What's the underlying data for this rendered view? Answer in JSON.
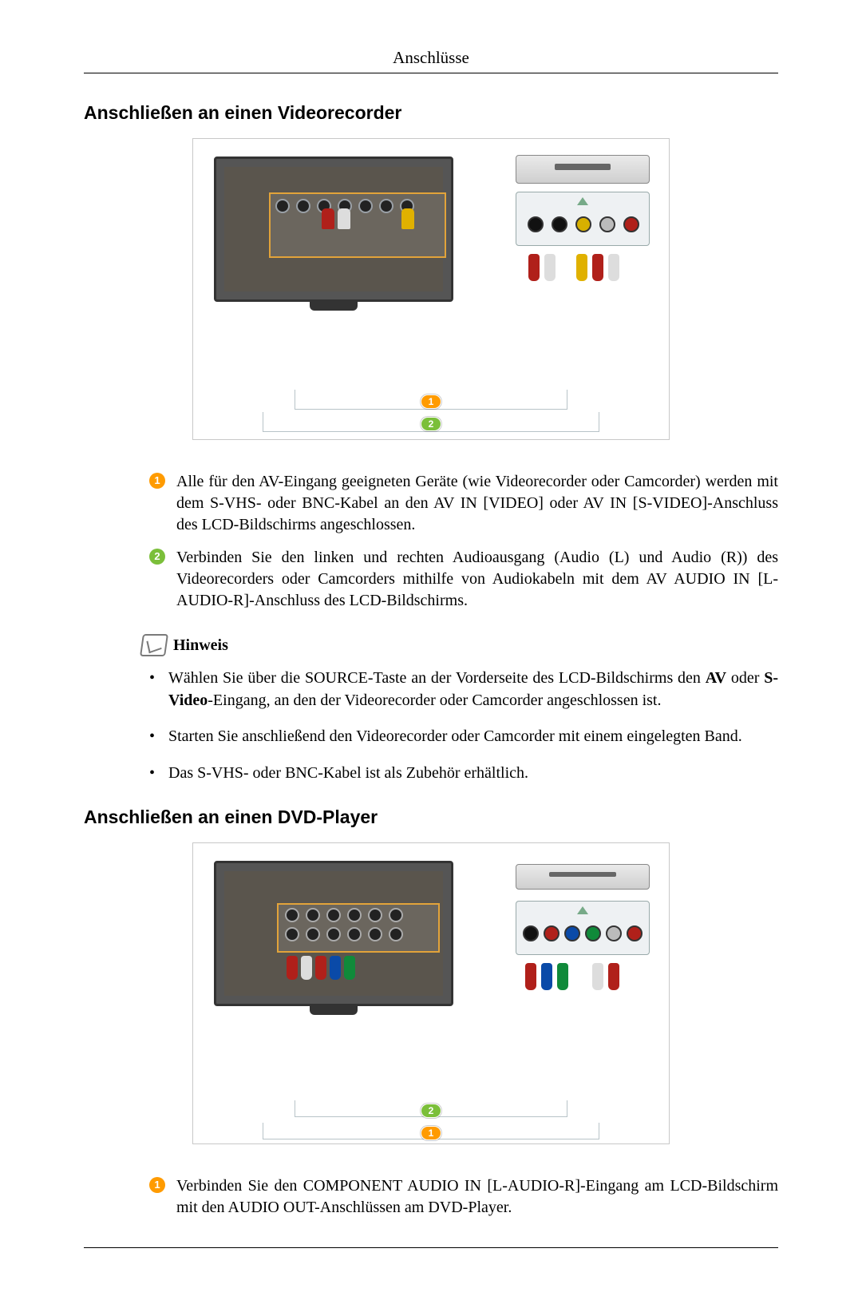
{
  "page": {
    "running_header": "Anschlüsse"
  },
  "section1": {
    "title": "Anschließen an einen Videorecorder",
    "steps": [
      {
        "color": "orange",
        "num": "1",
        "text": "Alle für den AV-Eingang geeigneten Geräte (wie Videorecorder oder Camcorder) werden mit dem S-VHS- oder BNC-Kabel an den AV IN [VIDEO] oder AV IN [S-VIDEO]-Anschluss des LCD-Bildschirms angeschlossen."
      },
      {
        "color": "green",
        "num": "2",
        "text": "Verbinden Sie den linken und rechten Audioausgang (Audio (L) und Audio (R)) des Videorecorders oder Camcorders mithilfe von Audiokabeln mit dem AV AUDIO IN [L-AUDIO-R]-Anschluss des LCD-Bildschirms."
      }
    ]
  },
  "note": {
    "label": "Hinweis",
    "items": [
      {
        "html": "Wählen Sie über die SOURCE-Taste an der Vorderseite des LCD-Bildschirms den <b>AV</b> oder <b>S-Video</b>-Eingang, an den der Videorecorder oder Camcorder angeschlossen ist."
      },
      {
        "html": "Starten Sie anschließend den Videorecorder oder Camcorder mit einem eingelegten Band."
      },
      {
        "html": "Das S-VHS- oder BNC-Kabel ist als Zubehör erhältlich."
      }
    ]
  },
  "section2": {
    "title": "Anschließen an einen DVD-Player",
    "steps": [
      {
        "color": "orange",
        "num": "1",
        "text": "Verbinden Sie den COMPONENT AUDIO IN [L-AUDIO-R]-Eingang am LCD-Bildschirm mit den AUDIO OUT-Anschlüssen am DVD-Player."
      }
    ]
  },
  "colors": {
    "badge_orange": "#ff9b00",
    "badge_green": "#7bbf3a",
    "plug_red": "#b0201a",
    "plug_white": "#dddddd",
    "plug_yellow": "#e0b100",
    "plug_green": "#108a3a",
    "plug_blue": "#0a4aa8",
    "panel_border": "#e2a33a"
  },
  "diagram": {
    "fig1": {
      "type": "connection-diagram",
      "device_left": "LCD monitor rear (AV IN)",
      "device_right": "VCR / Camcorder",
      "cables": [
        {
          "badge": 1,
          "color": "orange",
          "desc": "Video (S-VHS/BNC) yellow"
        },
        {
          "badge": 2,
          "color": "green",
          "desc": "Audio L/R (white/red)"
        }
      ],
      "right_jacks": [
        "black",
        "black",
        "yellow",
        "white",
        "red"
      ]
    },
    "fig2": {
      "type": "connection-diagram",
      "device_left": "LCD monitor rear (COMPONENT IN)",
      "device_right": "DVD player",
      "cables": [
        {
          "badge": 1,
          "color": "orange",
          "desc": "Audio L/R (white/red)"
        },
        {
          "badge": 2,
          "color": "green",
          "desc": "Component Y/Pb/Pr (green/blue/red)"
        }
      ],
      "right_jacks": [
        "black",
        "red",
        "blue",
        "green",
        "white",
        "red"
      ]
    }
  }
}
